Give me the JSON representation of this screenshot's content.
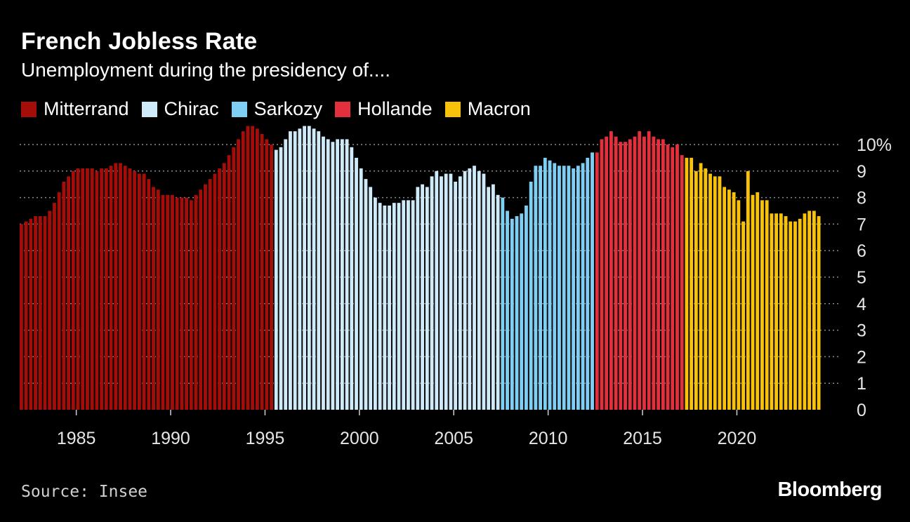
{
  "header": {
    "title": "French Jobless Rate",
    "subtitle": "Unemployment during the presidency of...."
  },
  "footer": {
    "source": "Source: Insee",
    "brand": "Bloomberg"
  },
  "chart_data": {
    "type": "bar",
    "title": "French Jobless Rate",
    "subtitle": "Unemployment during the presidency of....",
    "xlabel": "",
    "ylabel": "",
    "frequency": "quarterly",
    "x_start": "1982 Q1",
    "x_ticks": [
      "1985",
      "1990",
      "1995",
      "2000",
      "2005",
      "2010",
      "2015",
      "2020"
    ],
    "y_ticks": [
      "0",
      "1",
      "2",
      "3",
      "4",
      "5",
      "6",
      "7",
      "8",
      "9",
      "10%"
    ],
    "ylim": [
      0,
      11
    ],
    "grid": "horizontal dotted",
    "legend_position": "top",
    "series": [
      {
        "name": "Mitterrand",
        "color": "#a50d08",
        "start": "1982 Q1",
        "values": [
          7.0,
          7.1,
          7.2,
          7.3,
          7.3,
          7.3,
          7.5,
          7.8,
          8.2,
          8.6,
          8.8,
          9.0,
          9.1,
          9.1,
          9.1,
          9.1,
          9.0,
          9.1,
          9.1,
          9.2,
          9.3,
          9.3,
          9.2,
          9.1,
          9.0,
          8.9,
          8.9,
          8.7,
          8.4,
          8.3,
          8.1,
          8.1,
          8.1,
          8.0,
          8.0,
          8.0,
          7.9,
          8.1,
          8.3,
          8.5,
          8.7,
          8.9,
          9.1,
          9.3,
          9.6,
          9.9,
          10.2,
          10.5,
          10.7,
          10.7,
          10.6,
          10.4,
          10.2,
          10.0
        ]
      },
      {
        "name": "Chirac",
        "color": "#cfeaf8",
        "start": "1995 Q3",
        "values": [
          9.8,
          9.9,
          10.2,
          10.5,
          10.5,
          10.6,
          10.7,
          10.7,
          10.6,
          10.5,
          10.3,
          10.2,
          10.1,
          10.2,
          10.2,
          10.2,
          9.9,
          9.5,
          9.1,
          8.7,
          8.4,
          8.0,
          7.8,
          7.7,
          7.7,
          7.8,
          7.8,
          7.9,
          7.9,
          7.9,
          8.4,
          8.5,
          8.4,
          8.8,
          9.0,
          8.8,
          8.9,
          8.9,
          8.6,
          8.8,
          9.0,
          9.1,
          9.2,
          9.0,
          8.9,
          8.4,
          8.5,
          8.1
        ]
      },
      {
        "name": "Sarkozy",
        "color": "#7fcef3",
        "start": "2007 Q3",
        "values": [
          8.0,
          7.5,
          7.2,
          7.3,
          7.4,
          7.7,
          8.6,
          9.2,
          9.2,
          9.5,
          9.4,
          9.3,
          9.2,
          9.2,
          9.2,
          9.1,
          9.2,
          9.3,
          9.5,
          9.7
        ]
      },
      {
        "name": "Hollande",
        "color": "#e4303d",
        "start": "2012 Q3",
        "values": [
          9.7,
          10.2,
          10.3,
          10.5,
          10.3,
          10.1,
          10.1,
          10.2,
          10.3,
          10.5,
          10.3,
          10.5,
          10.3,
          10.2,
          10.2,
          10.0,
          9.9,
          10.0,
          9.6
        ]
      },
      {
        "name": "Macron",
        "color": "#f8c10a",
        "start": "2017 Q2",
        "values": [
          9.5,
          9.5,
          9.0,
          9.3,
          9.1,
          8.9,
          8.8,
          8.8,
          8.4,
          8.3,
          8.2,
          7.9,
          7.1,
          9.0,
          8.1,
          8.2,
          7.9,
          7.9,
          7.4,
          7.4,
          7.4,
          7.3,
          7.1,
          7.1,
          7.2,
          7.4,
          7.5,
          7.5,
          7.3
        ]
      }
    ]
  }
}
